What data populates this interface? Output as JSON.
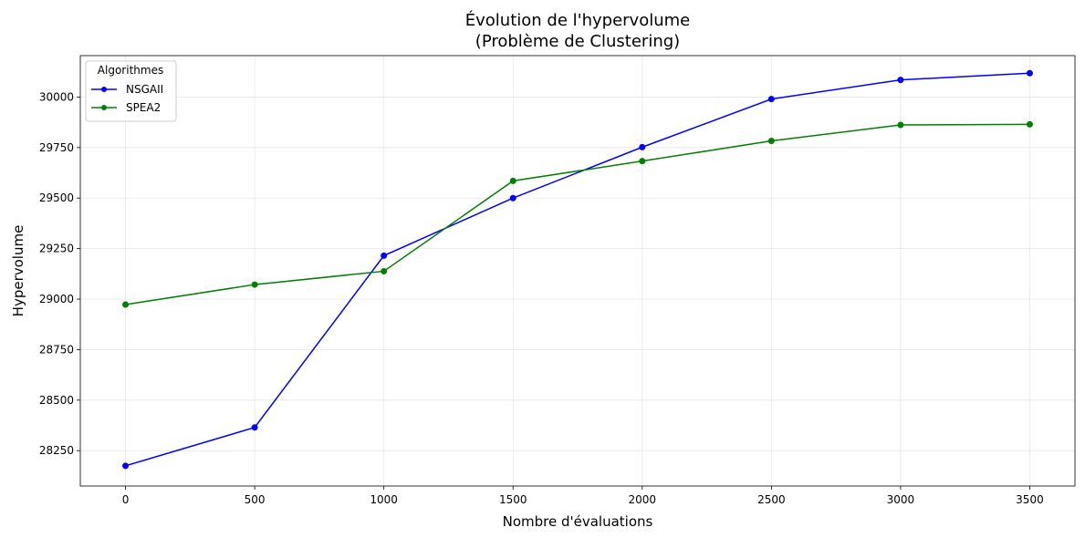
{
  "chart_data": {
    "type": "line",
    "title": "Évolution de l'hypervolume",
    "subtitle": "(Problème de Clustering)",
    "xlabel": "Nombre d'évaluations",
    "ylabel": "Hypervolume",
    "xlim": [
      -175,
      3675
    ],
    "ylim": [
      28075,
      30205
    ],
    "xticks": [
      0,
      500,
      1000,
      1500,
      2000,
      2500,
      3000,
      3500
    ],
    "yticks": [
      28250,
      28500,
      28750,
      29000,
      29250,
      29500,
      29750,
      30000
    ],
    "xtick_labels": [
      "0",
      "500",
      "1000",
      "1500",
      "2000",
      "2500",
      "3000",
      "3500"
    ],
    "ytick_labels": [
      "28250",
      "28500",
      "28750",
      "29000",
      "29250",
      "29500",
      "29750",
      "30000"
    ],
    "grid": true,
    "legend": {
      "title": "Algorithmes",
      "placement": "top-left"
    },
    "x": [
      0,
      500,
      1000,
      1500,
      2000,
      2500,
      3000,
      3500
    ],
    "series": [
      {
        "name": "NSGAII",
        "color": "#0000ff",
        "marker": "circle",
        "values": [
          28175,
          28365,
          29215,
          29500,
          29752,
          29990,
          30085,
          30118
        ]
      },
      {
        "name": "SPEA2",
        "color": "#008000",
        "marker": "circle",
        "values": [
          28973,
          29072,
          29138,
          29585,
          29683,
          29783,
          29862,
          29865
        ]
      }
    ]
  }
}
